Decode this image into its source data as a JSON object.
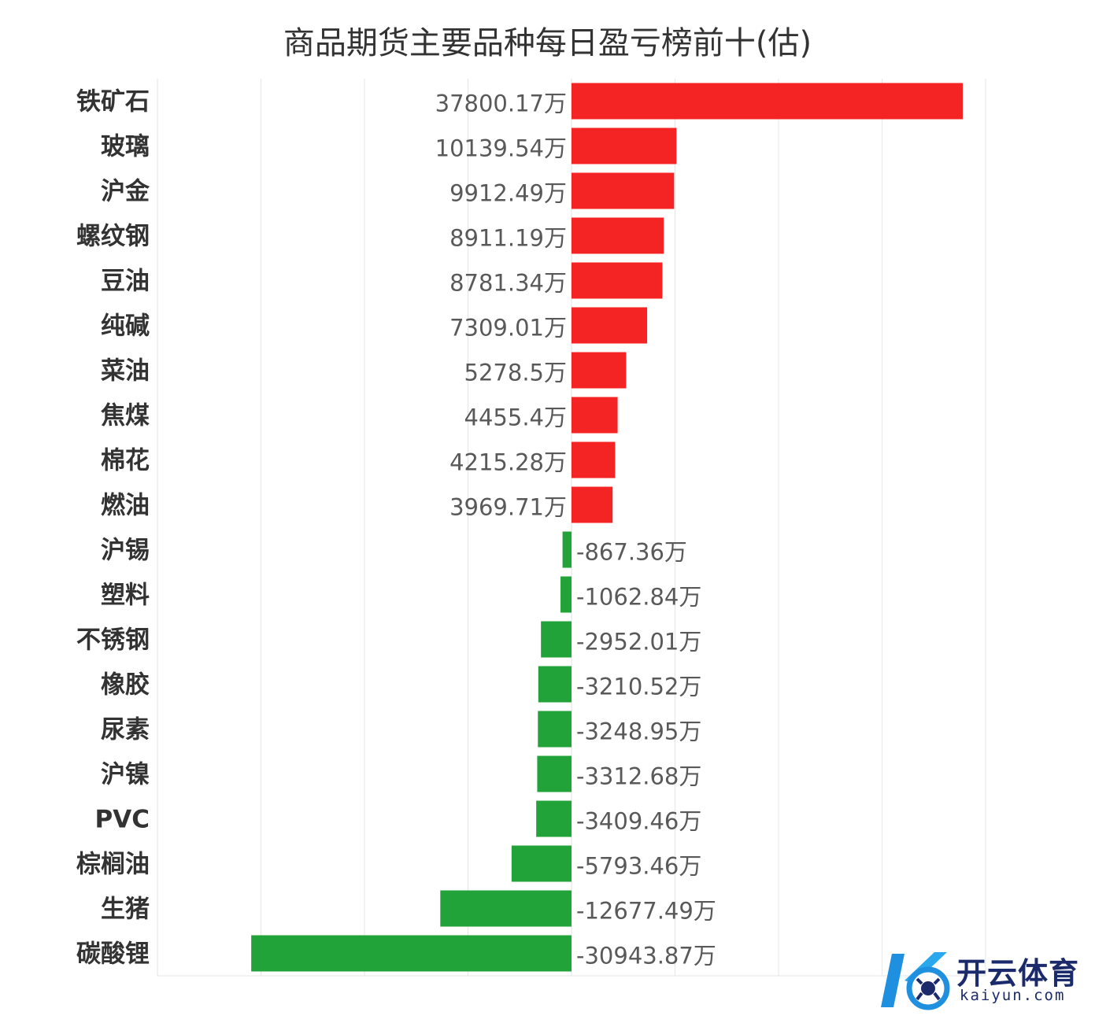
{
  "chart_data": {
    "type": "bar",
    "orientation": "horizontal",
    "title": "商品期货主要品种每日盈亏榜前十(估)",
    "value_suffix": "万",
    "categories": [
      "铁矿石",
      "玻璃",
      "沪金",
      "螺纹钢",
      "豆油",
      "纯碱",
      "菜油",
      "焦煤",
      "棉花",
      "燃油",
      "沪锡",
      "塑料",
      "不锈钢",
      "橡胶",
      "尿素",
      "沪镍",
      "PVC",
      "棕榈油",
      "生猪",
      "碳酸锂"
    ],
    "values": [
      37800.17,
      10139.54,
      9912.49,
      8911.19,
      8781.34,
      7309.01,
      5278.5,
      4455.4,
      4215.28,
      3969.71,
      -867.36,
      -1062.84,
      -2952.01,
      -3210.52,
      -3248.95,
      -3312.68,
      -3409.46,
      -5793.46,
      -12677.49,
      -30943.87
    ],
    "labels": [
      "37800.17万",
      "10139.54万",
      "9912.49万",
      "8911.19万",
      "8781.34万",
      "7309.01万",
      "5278.5万",
      "4455.4万",
      "4215.28万",
      "3969.71万",
      "-867.36万",
      "-1062.84万",
      "-2952.01万",
      "-3210.52万",
      "-3248.95万",
      "-3312.68万",
      "-3409.46万",
      "-5793.46万",
      "-12677.49万",
      "-30943.87万"
    ],
    "xlim": [
      -40000,
      40000
    ],
    "grid": true,
    "positive_color": "#f52424",
    "negative_color": "#22a33a"
  },
  "watermark": {
    "brand": "开云体育",
    "url": "kaiyun.com"
  }
}
